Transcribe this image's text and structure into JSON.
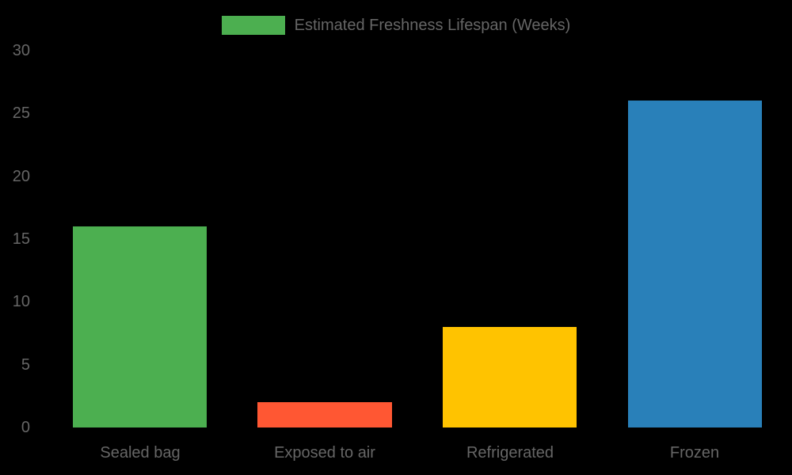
{
  "chart_data": {
    "type": "bar",
    "title": "",
    "categories": [
      "Sealed bag",
      "Exposed to air",
      "Refrigerated",
      "Frozen"
    ],
    "series": [
      {
        "name": "Estimated Freshness Lifespan (Weeks)",
        "values": [
          16,
          2,
          8,
          26
        ],
        "colors": [
          "#4CAF50",
          "#FF5733",
          "#FFC300",
          "#2980B9"
        ]
      }
    ],
    "xlabel": "",
    "ylabel": "",
    "ylim": [
      0,
      30
    ],
    "yticks": [
      "30",
      "25",
      "20",
      "15",
      "10",
      "5",
      "0"
    ],
    "grid": false,
    "legend_position": "top"
  },
  "legend": {
    "label": "Estimated Freshness Lifespan (Weeks)",
    "color": "#4CAF50"
  },
  "background": "#000000"
}
